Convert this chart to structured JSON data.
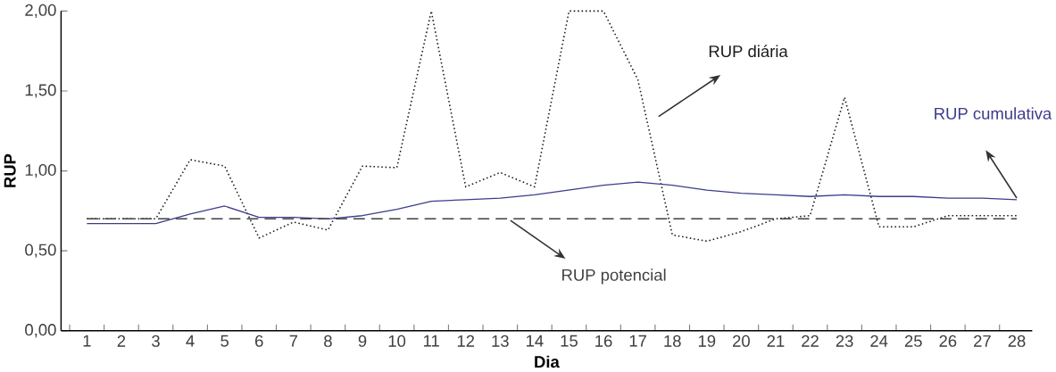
{
  "chart_data": {
    "type": "line",
    "xlabel": "Dia",
    "ylabel": "RUP",
    "categories": [
      "1",
      "2",
      "3",
      "4",
      "5",
      "6",
      "7",
      "8",
      "9",
      "10",
      "11",
      "12",
      "13",
      "14",
      "15",
      "16",
      "17",
      "18",
      "19",
      "20",
      "21",
      "22",
      "23",
      "24",
      "25",
      "26",
      "27",
      "28"
    ],
    "ylim": [
      0,
      2
    ],
    "yticks": [
      {
        "value": 0,
        "label": "0,00"
      },
      {
        "value": 0.5,
        "label": "0,50"
      },
      {
        "value": 1,
        "label": "1,00"
      },
      {
        "value": 1.5,
        "label": "1,50"
      },
      {
        "value": 2,
        "label": "2,00"
      }
    ],
    "series": [
      {
        "name": "RUP diária",
        "color": "#1a1a1a",
        "line_style": "dotted",
        "values": [
          0.7,
          0.7,
          0.7,
          1.07,
          1.03,
          0.58,
          0.68,
          0.63,
          1.03,
          1.02,
          2.0,
          0.9,
          0.99,
          0.9,
          2.0,
          2.0,
          1.57,
          0.6,
          0.56,
          0.62,
          0.7,
          0.72,
          1.46,
          0.65,
          0.65,
          0.72,
          0.72,
          0.72
        ]
      },
      {
        "name": "RUP cumulativa",
        "color": "#3c3c8c",
        "line_style": "solid",
        "values": [
          0.67,
          0.67,
          0.67,
          0.73,
          0.78,
          0.71,
          0.71,
          0.7,
          0.72,
          0.76,
          0.81,
          0.82,
          0.83,
          0.85,
          0.88,
          0.91,
          0.93,
          0.91,
          0.88,
          0.86,
          0.85,
          0.84,
          0.85,
          0.84,
          0.84,
          0.83,
          0.83,
          0.82
        ]
      },
      {
        "name": "RUP potencial",
        "color": "#404040",
        "line_style": "dashed",
        "values": [
          0.7,
          0.7,
          0.7,
          0.7,
          0.7,
          0.7,
          0.7,
          0.7,
          0.7,
          0.7,
          0.7,
          0.7,
          0.7,
          0.7,
          0.7,
          0.7,
          0.7,
          0.7,
          0.7,
          0.7,
          0.7,
          0.7,
          0.7,
          0.7,
          0.7,
          0.7,
          0.7,
          0.7
        ]
      }
    ]
  }
}
